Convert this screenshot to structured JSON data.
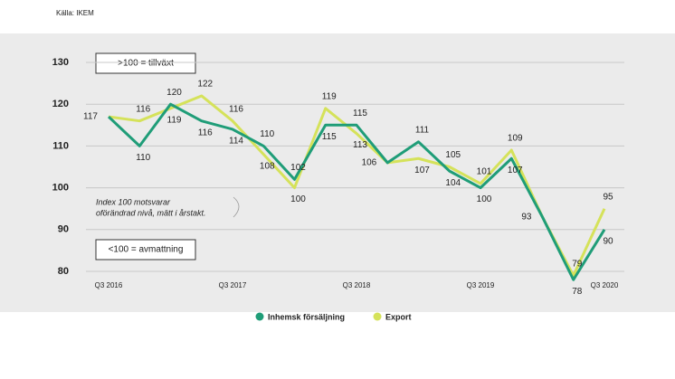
{
  "chart_data": {
    "type": "line",
    "source": "Källa: IKEM",
    "categories": [
      "Q3 2016",
      null,
      null,
      null,
      "Q3 2017",
      null,
      null,
      null,
      "Q3 2018",
      null,
      null,
      null,
      "Q3 2019",
      null,
      null,
      null,
      "Q3 2020"
    ],
    "series": [
      {
        "name": "Inhemsk försäljning",
        "color": "#1f9d78",
        "values": [
          117,
          110,
          120,
          116,
          114,
          110,
          102,
          115,
          115,
          106,
          111,
          104,
          100,
          107,
          93,
          78,
          90
        ]
      },
      {
        "name": "Export",
        "color": "#d5e25a",
        "values": [
          117,
          116,
          119,
          122,
          116,
          108,
          100,
          119,
          113,
          106,
          107,
          105,
          101,
          109,
          93,
          79,
          95
        ]
      }
    ],
    "ylim": [
      80,
      130
    ],
    "yticks": [
      80,
      90,
      100,
      110,
      120,
      130
    ],
    "grid": true,
    "legend": "bottom",
    "annotations": [
      ">100 = tillväxt",
      "<100 = avmattning"
    ],
    "note": [
      "Index 100 motsvarar",
      "oförändrad nivå, mätt i årstakt."
    ]
  }
}
